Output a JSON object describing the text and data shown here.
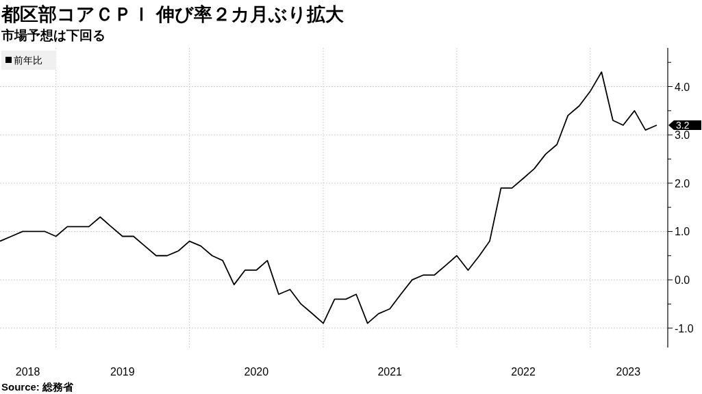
{
  "chart_data": {
    "type": "line",
    "title": "都区部コアＣＰＩ 伸び率２カ月ぶり拡大",
    "subtitle": "市場予想は下回る",
    "x": [
      "2018-07",
      "2018-08",
      "2018-09",
      "2018-10",
      "2018-11",
      "2018-12",
      "2019-01",
      "2019-02",
      "2019-03",
      "2019-04",
      "2019-05",
      "2019-06",
      "2019-07",
      "2019-08",
      "2019-09",
      "2019-10",
      "2019-11",
      "2019-12",
      "2020-01",
      "2020-02",
      "2020-03",
      "2020-04",
      "2020-05",
      "2020-06",
      "2020-07",
      "2020-08",
      "2020-09",
      "2020-10",
      "2020-11",
      "2020-12",
      "2021-01",
      "2021-02",
      "2021-03",
      "2021-04",
      "2021-05",
      "2021-06",
      "2021-07",
      "2021-08",
      "2021-09",
      "2021-10",
      "2021-11",
      "2021-12",
      "2022-01",
      "2022-02",
      "2022-03",
      "2022-04",
      "2022-05",
      "2022-06",
      "2022-07",
      "2022-08",
      "2022-09",
      "2022-10",
      "2022-11",
      "2022-12",
      "2023-01",
      "2023-02",
      "2023-03",
      "2023-04",
      "2023-05",
      "2023-06"
    ],
    "series": [
      {
        "name": "前年比",
        "color": "#000000",
        "values": [
          0.8,
          0.9,
          1.0,
          1.0,
          1.0,
          0.9,
          1.1,
          1.1,
          1.1,
          1.3,
          1.1,
          0.9,
          0.9,
          0.7,
          0.5,
          0.5,
          0.6,
          0.8,
          0.7,
          0.5,
          0.4,
          -0.1,
          0.2,
          0.2,
          0.4,
          -0.3,
          -0.2,
          -0.5,
          -0.7,
          -0.9,
          -0.4,
          -0.4,
          -0.3,
          -0.9,
          -0.7,
          -0.6,
          -0.3,
          0.0,
          0.1,
          0.1,
          0.3,
          0.5,
          0.2,
          0.5,
          0.8,
          1.9,
          1.9,
          2.1,
          2.3,
          2.6,
          2.8,
          3.4,
          3.6,
          3.9,
          4.3,
          3.3,
          3.2,
          3.5,
          3.1,
          3.2
        ]
      }
    ],
    "xlim": [
      "2018-07-01",
      "2023-07-01"
    ],
    "xticks": [
      {
        "value": "2018-09-15",
        "label": "2018"
      },
      {
        "value": "2018-12-01",
        "label": null
      },
      {
        "value": "2019-06-01",
        "label": "2019"
      },
      {
        "value": "2019-12-01",
        "label": null
      },
      {
        "value": "2020-06-01",
        "label": "2020"
      },
      {
        "value": "2020-12-01",
        "label": null
      },
      {
        "value": "2021-06-01",
        "label": "2021"
      },
      {
        "value": "2021-12-01",
        "label": null
      },
      {
        "value": "2022-06-01",
        "label": "2022"
      },
      {
        "value": "2022-12-01",
        "label": null
      },
      {
        "value": "2023-03-15",
        "label": "2023"
      }
    ],
    "ylim": [
      -1.4,
      4.8
    ],
    "yticks": [
      {
        "value": -1.0,
        "label": "-1.0"
      },
      {
        "value": -0.5,
        "label": null
      },
      {
        "value": 0.0,
        "label": "0.0"
      },
      {
        "value": 0.5,
        "label": null
      },
      {
        "value": 1.0,
        "label": "1.0"
      },
      {
        "value": 1.5,
        "label": null
      },
      {
        "value": 2.0,
        "label": "2.0"
      },
      {
        "value": 2.5,
        "label": null
      },
      {
        "value": 3.0,
        "label": "3.0"
      },
      {
        "value": 3.5,
        "label": null
      },
      {
        "value": 4.0,
        "label": "4.0"
      },
      {
        "value": 4.5,
        "label": null
      }
    ],
    "grid": true,
    "legend": "top left",
    "marker": "none",
    "line_style": "solid",
    "annotations": [
      {
        "text": "3.2",
        "x": "2023-06",
        "y": 3.2
      },
      "Source: 総務省"
    ]
  }
}
